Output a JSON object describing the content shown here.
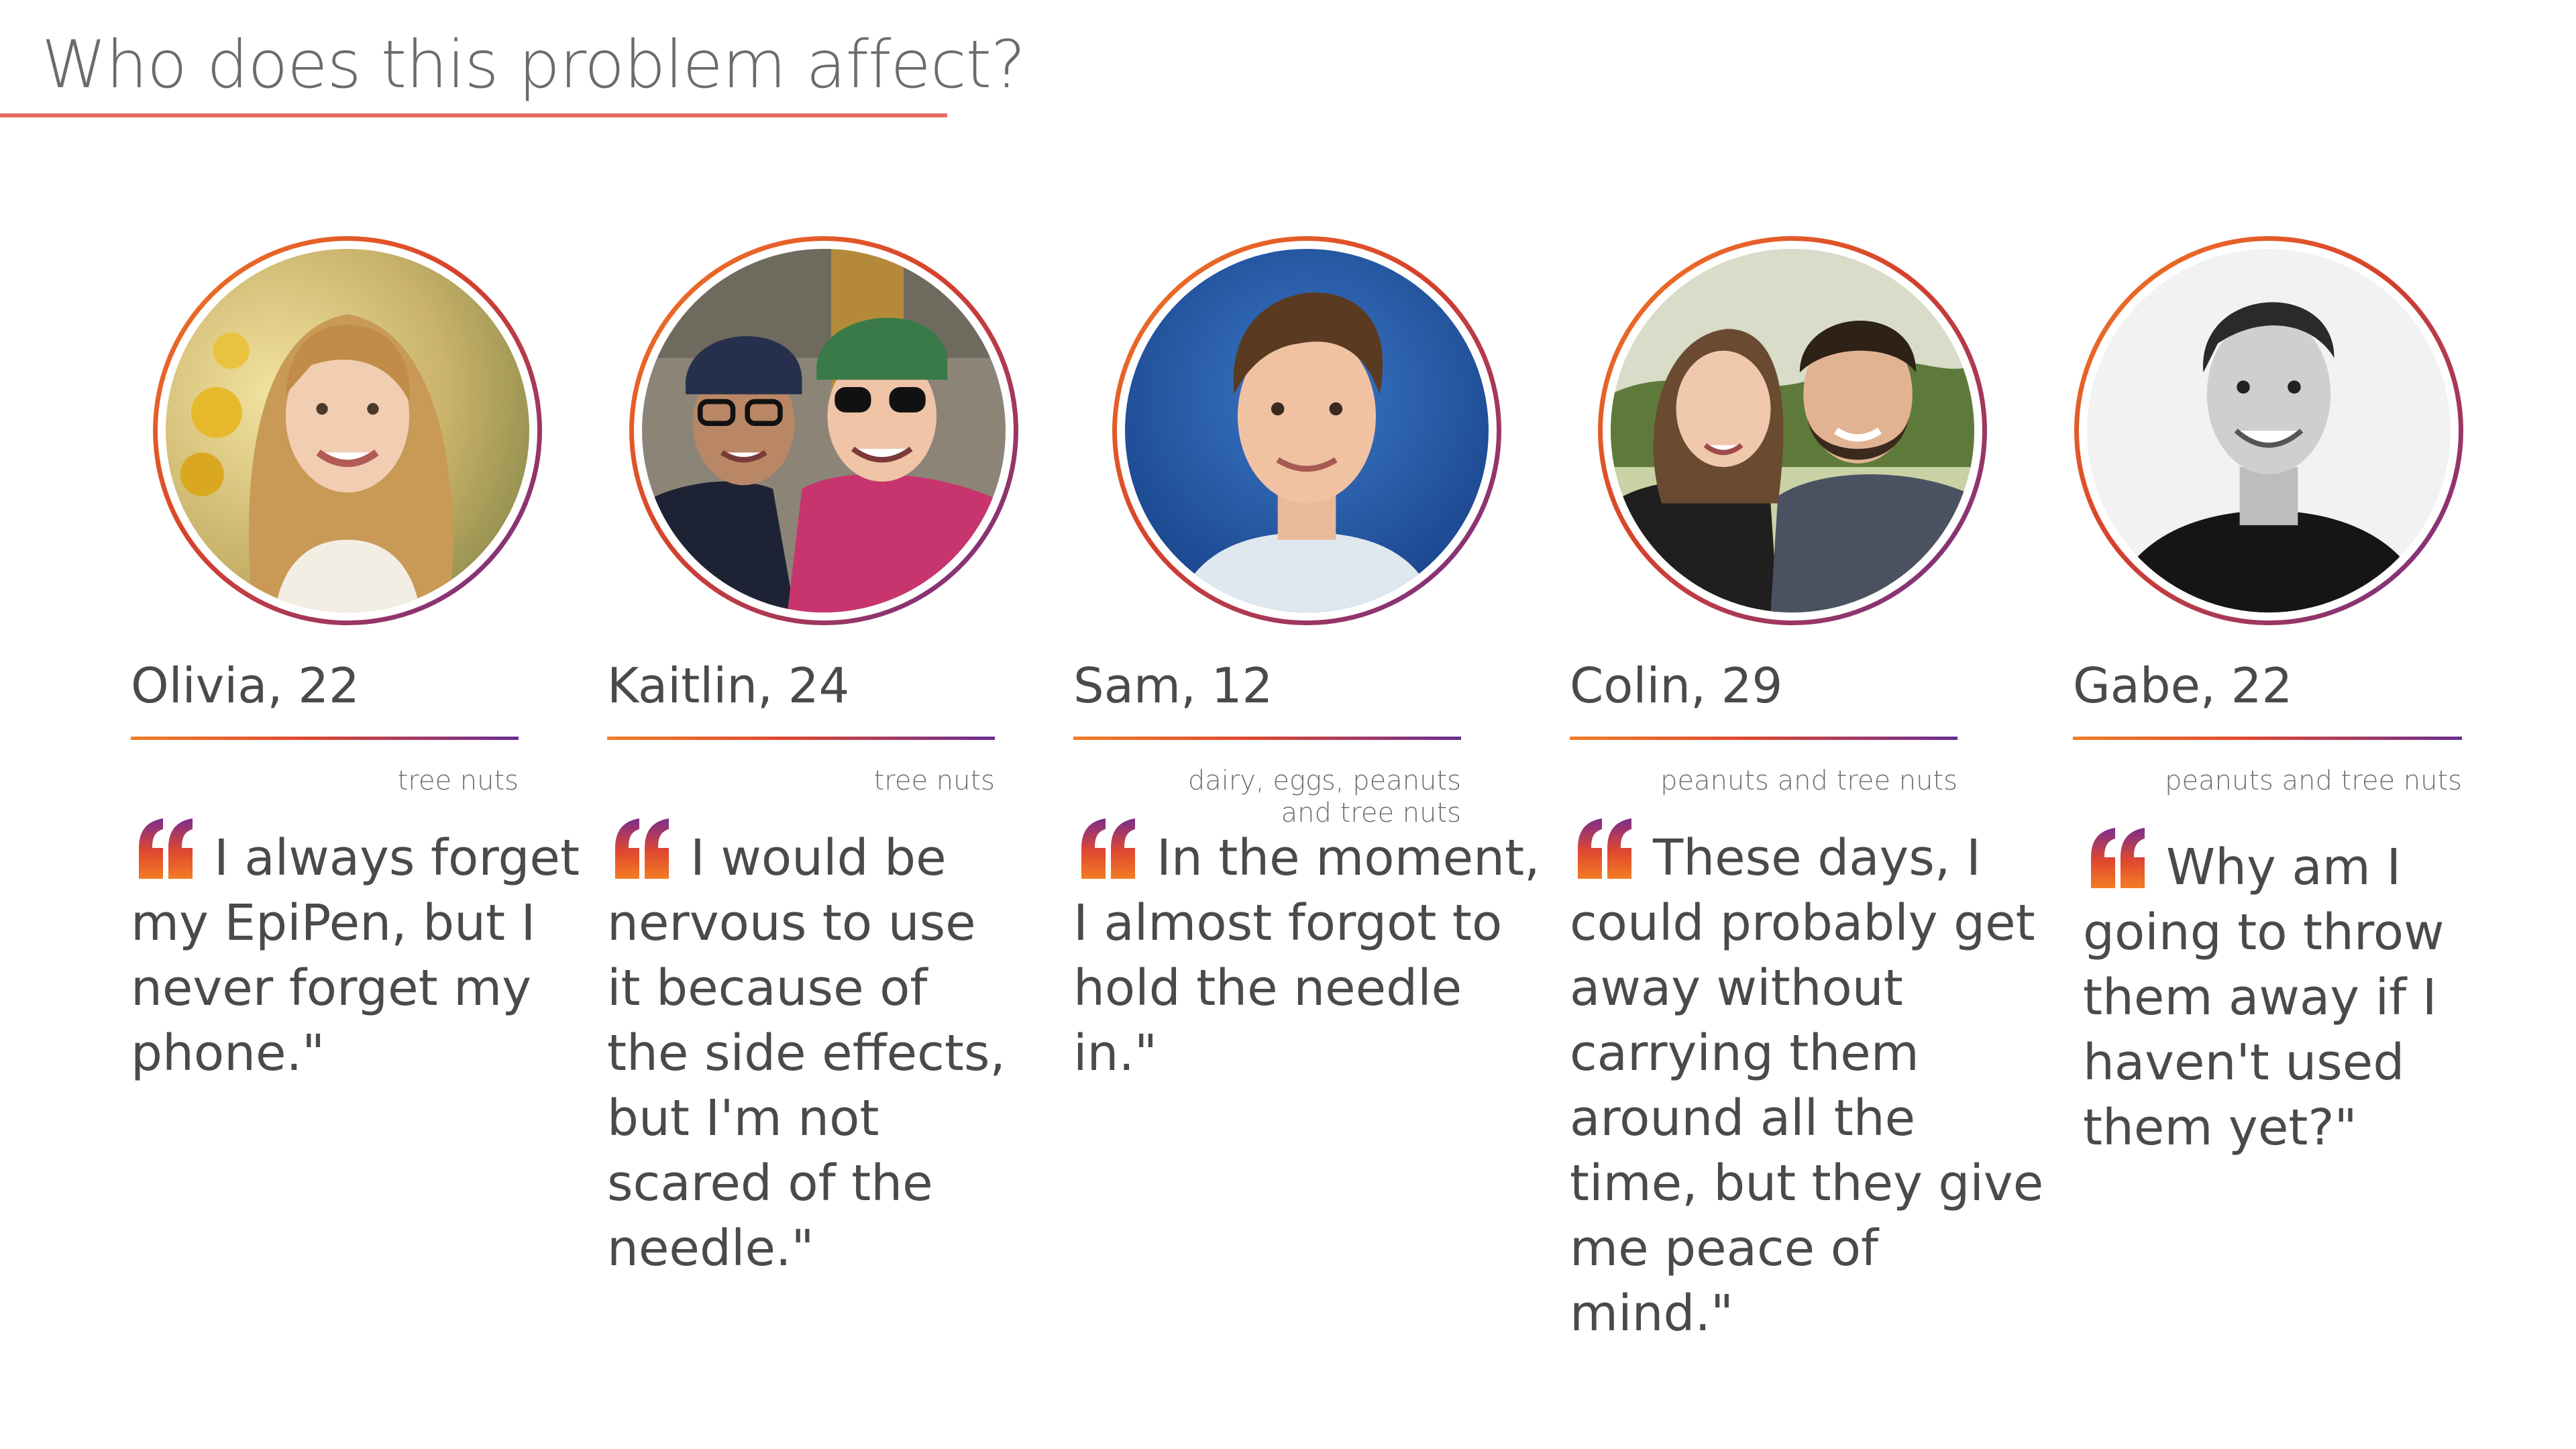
{
  "slide": {
    "title": "Who does this problem affect?"
  },
  "colors": {
    "title_underline": "#e46b63",
    "gradient_start": "#f37d25",
    "gradient_mid": "#e0482f",
    "gradient_end": "#6a2e91",
    "text_dark": "#4a4a4a",
    "text_light": "#707070"
  },
  "profiles": [
    {
      "name": "Olivia, 22",
      "allergy": "tree nuts",
      "quote": "I always forget my EpiPen, but I never forget my phone.\"",
      "photo": "portrait-young-woman-long-blonde-hair"
    },
    {
      "name": "Kaitlin, 24",
      "allergy": "tree nuts",
      "quote": "I would be nervous to use it because of the side effects, but I'm not scared of the needle.\"",
      "photo": "selfie-couple-caps-sunglasses"
    },
    {
      "name": "Sam, 12",
      "allergy": "dairy, eggs, peanuts and tree nuts",
      "quote": "In the moment, I almost forgot to hold the needle in.\"",
      "photo": "school-portrait-boy-blue-background"
    },
    {
      "name": "Colin, 29",
      "allergy": "peanuts and tree nuts",
      "quote": "These days, I could probably get away without carrying them around all the time, but they give me peace of mind.\"",
      "photo": "couple-outdoors-engagement"
    },
    {
      "name": "Gabe, 22",
      "allergy": "peanuts and tree nuts",
      "quote": "Why am I going to throw them away if I haven't used them yet?\"",
      "photo": "black-and-white-portrait-man"
    }
  ]
}
